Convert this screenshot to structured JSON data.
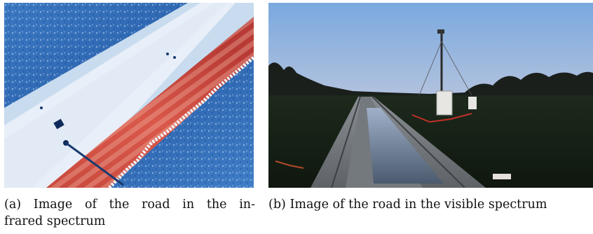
{
  "figure": {
    "panel_a": {
      "caption_tag": "(a)",
      "caption_words_line1": [
        "Image",
        "of",
        "the",
        "road",
        "in",
        "the",
        "in-"
      ],
      "caption_line2": "frared spectrum"
    },
    "panel_b": {
      "caption_tag": "(b)",
      "caption_text": "Image of the road in the visible spectrum"
    }
  }
}
